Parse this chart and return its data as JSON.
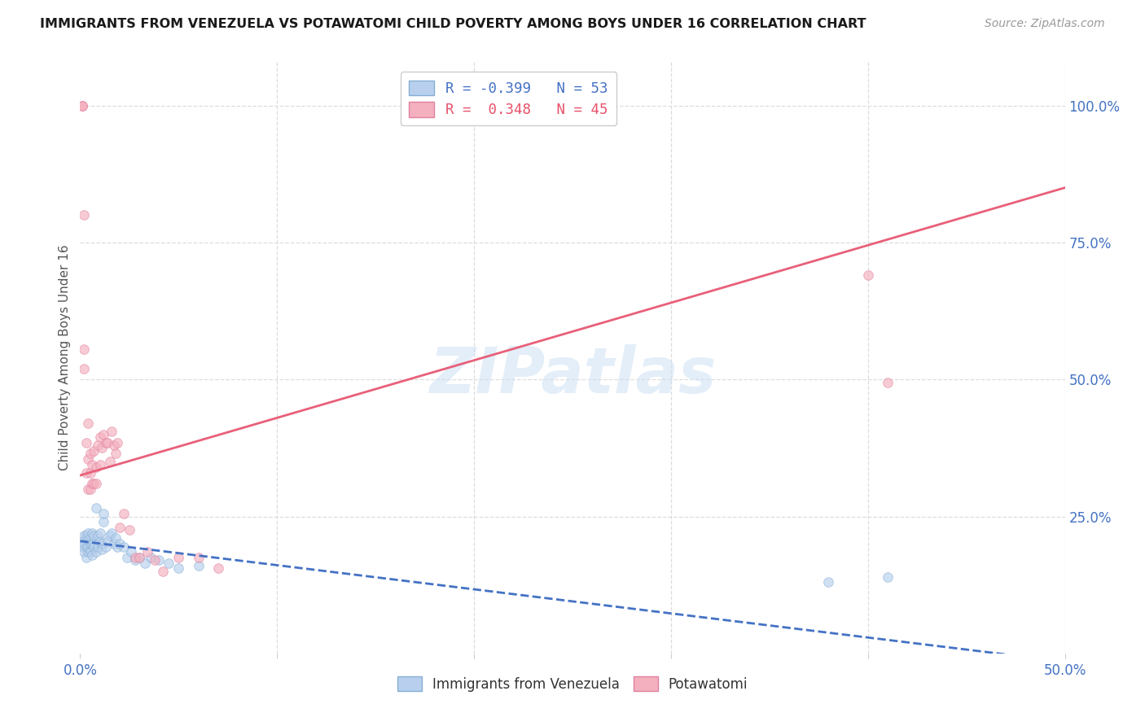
{
  "title": "IMMIGRANTS FROM VENEZUELA VS POTAWATOMI CHILD POVERTY AMONG BOYS UNDER 16 CORRELATION CHART",
  "source": "Source: ZipAtlas.com",
  "ylabel": "Child Poverty Among Boys Under 16",
  "ylabel_right_ticks": [
    "100.0%",
    "75.0%",
    "50.0%",
    "25.0%"
  ],
  "ylabel_right_vals": [
    1.0,
    0.75,
    0.5,
    0.25
  ],
  "watermark": "ZIPatlas",
  "xmin": 0.0,
  "xmax": 0.5,
  "ymin": 0.0,
  "ymax": 1.08,
  "blue_line_color": "#4472c4",
  "pink_line_color": "#e8607a",
  "background_color": "#ffffff",
  "grid_color": "#dddddd",
  "scatter_alpha": 0.65,
  "scatter_size": 70,
  "blue_intercept": 0.205,
  "blue_slope": -0.44,
  "pink_intercept": 0.325,
  "pink_slope": 1.05,
  "blue_scatter_x": [
    0.001,
    0.001,
    0.002,
    0.002,
    0.002,
    0.003,
    0.003,
    0.003,
    0.004,
    0.004,
    0.004,
    0.004,
    0.005,
    0.005,
    0.005,
    0.005,
    0.006,
    0.006,
    0.006,
    0.007,
    0.007,
    0.007,
    0.008,
    0.008,
    0.009,
    0.009,
    0.01,
    0.01,
    0.011,
    0.011,
    0.012,
    0.012,
    0.013,
    0.014,
    0.015,
    0.016,
    0.017,
    0.018,
    0.019,
    0.02,
    0.022,
    0.024,
    0.026,
    0.028,
    0.03,
    0.033,
    0.036,
    0.04,
    0.045,
    0.05,
    0.06,
    0.38,
    0.41
  ],
  "blue_scatter_y": [
    0.195,
    0.205,
    0.185,
    0.2,
    0.215,
    0.175,
    0.195,
    0.215,
    0.185,
    0.195,
    0.21,
    0.22,
    0.19,
    0.2,
    0.185,
    0.21,
    0.2,
    0.22,
    0.18,
    0.2,
    0.215,
    0.195,
    0.265,
    0.185,
    0.195,
    0.215,
    0.205,
    0.22,
    0.2,
    0.19,
    0.24,
    0.255,
    0.195,
    0.205,
    0.215,
    0.22,
    0.2,
    0.21,
    0.195,
    0.2,
    0.195,
    0.175,
    0.185,
    0.17,
    0.175,
    0.165,
    0.175,
    0.17,
    0.165,
    0.155,
    0.16,
    0.13,
    0.14
  ],
  "pink_scatter_x": [
    0.001,
    0.001,
    0.001,
    0.002,
    0.002,
    0.002,
    0.003,
    0.003,
    0.004,
    0.004,
    0.004,
    0.005,
    0.005,
    0.005,
    0.006,
    0.006,
    0.007,
    0.007,
    0.008,
    0.008,
    0.009,
    0.01,
    0.01,
    0.011,
    0.012,
    0.013,
    0.014,
    0.015,
    0.016,
    0.017,
    0.018,
    0.019,
    0.02,
    0.022,
    0.025,
    0.028,
    0.03,
    0.034,
    0.038,
    0.042,
    0.05,
    0.06,
    0.07,
    0.4,
    0.41
  ],
  "pink_scatter_y": [
    1.0,
    1.0,
    1.0,
    0.8,
    0.555,
    0.52,
    0.385,
    0.33,
    0.42,
    0.355,
    0.3,
    0.365,
    0.33,
    0.3,
    0.31,
    0.345,
    0.37,
    0.31,
    0.31,
    0.34,
    0.38,
    0.345,
    0.395,
    0.375,
    0.4,
    0.385,
    0.385,
    0.35,
    0.405,
    0.38,
    0.365,
    0.385,
    0.23,
    0.255,
    0.225,
    0.175,
    0.175,
    0.185,
    0.17,
    0.15,
    0.175,
    0.175,
    0.155,
    0.69,
    0.495
  ]
}
